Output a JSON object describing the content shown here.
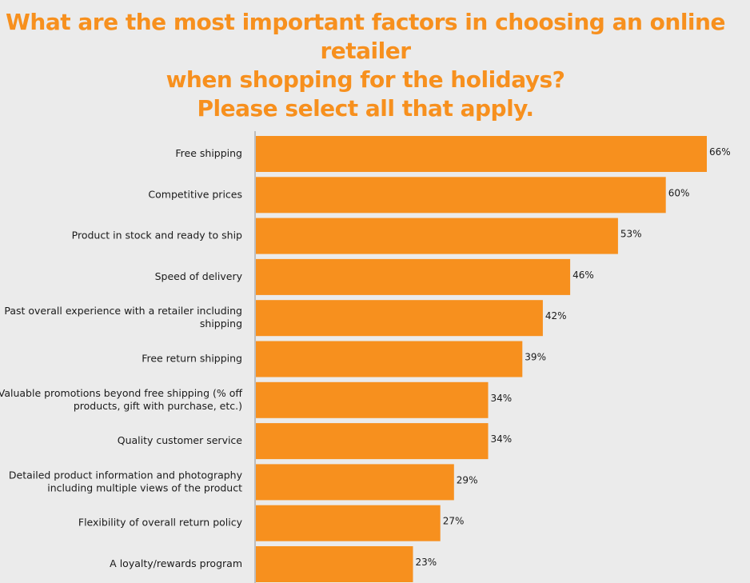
{
  "header": {
    "title_lines": [
      "What are the most important factors in choosing an online retailer",
      "when shopping for the holidays?",
      "Please select all that apply."
    ]
  },
  "colors": {
    "accent": "#f7901e",
    "bar": "#f7901e",
    "background": "#ebebeb",
    "axis": "#b0b0b0",
    "text": "#1a1a1a"
  },
  "chart_data": {
    "type": "bar",
    "orientation": "horizontal",
    "title": "What are the most important factors in choosing an online retailer when shopping for the holidays? Please select all that apply.",
    "categories": [
      [
        "Free shipping"
      ],
      [
        "Competitive prices"
      ],
      [
        "Product in stock and ready to ship"
      ],
      [
        "Speed of delivery"
      ],
      [
        "Past overall experience with a retailer including",
        "shipping"
      ],
      [
        "Free return shipping"
      ],
      [
        "Valuable promotions beyond free shipping (% off",
        "products, gift with purchase, etc.)"
      ],
      [
        "Quality customer service"
      ],
      [
        "Detailed product information and photography",
        "including multiple views of the product"
      ],
      [
        "Flexibility of overall return policy"
      ],
      [
        "A loyalty/rewards program"
      ]
    ],
    "values": [
      66,
      60,
      53,
      46,
      42,
      39,
      34,
      34,
      29,
      27,
      23
    ],
    "value_labels": [
      "66%",
      "60%",
      "53%",
      "46%",
      "42%",
      "39%",
      "34%",
      "34%",
      "29%",
      "27%",
      "23%"
    ],
    "unit": "%",
    "xlim": [
      0,
      66
    ],
    "grid": false,
    "legend": "none"
  }
}
